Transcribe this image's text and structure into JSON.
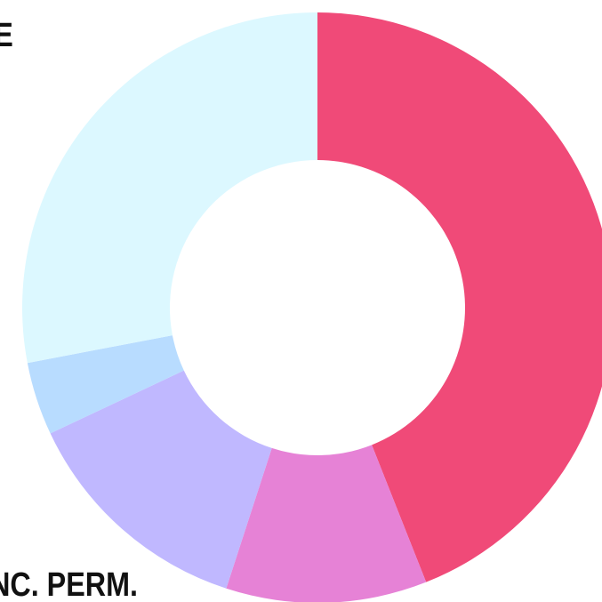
{
  "chart_data": {
    "type": "pie",
    "values": [
      44,
      11,
      13,
      4,
      28
    ],
    "colors": [
      "#f04a78",
      "#e682d6",
      "#c0b8ff",
      "#b8dcff",
      "#dcf8ff"
    ],
    "annotations": [
      "E",
      "NC. PERM."
    ]
  }
}
